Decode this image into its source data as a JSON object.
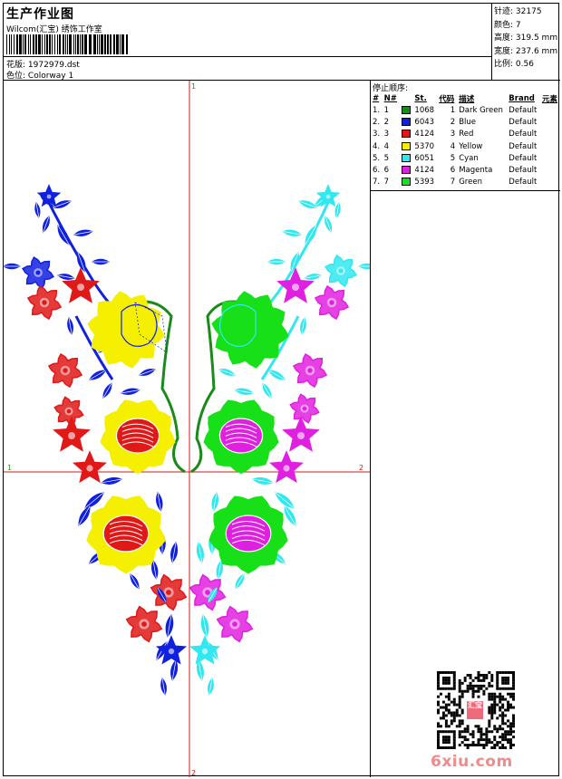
{
  "header": {
    "title": "生产作业图",
    "company": "Wilcom(汇宝) 绣饰工作室",
    "pattern_label": "花版:",
    "pattern_value": "1972979.dst",
    "colorway_label": "色位:",
    "colorway_value": "Colorway 1"
  },
  "stats": [
    {
      "label": "针迹:",
      "value": "32175"
    },
    {
      "label": "颜色:",
      "value": "7"
    },
    {
      "label": "高度:",
      "value": "319.5 mm"
    },
    {
      "label": "宽度:",
      "value": "237.6 mm"
    },
    {
      "label": "比例:",
      "value": "0.56"
    }
  ],
  "crosshair": {
    "top": "1",
    "bottom": "2",
    "left": "1",
    "right": "2"
  },
  "stop_sequence": {
    "title": "停止顺序:",
    "headers": {
      "idx": "#",
      "num": "N#",
      "st": "St.",
      "code": "代码",
      "desc": "描述",
      "brand": "Brand",
      "elem": "元素"
    },
    "rows": [
      {
        "idx": "1.",
        "num": "1",
        "color": "#1a8a1a",
        "st": "1068",
        "code": "1",
        "desc": "Dark Green",
        "brand": "Default"
      },
      {
        "idx": "2.",
        "num": "2",
        "color": "#1020e0",
        "st": "6043",
        "code": "2",
        "desc": "Blue",
        "brand": "Default"
      },
      {
        "idx": "3.",
        "num": "3",
        "color": "#e01818",
        "st": "4124",
        "code": "3",
        "desc": "Red",
        "brand": "Default"
      },
      {
        "idx": "4.",
        "num": "4",
        "color": "#f4f000",
        "st": "5370",
        "code": "4",
        "desc": "Yellow",
        "brand": "Default"
      },
      {
        "idx": "5.",
        "num": "5",
        "color": "#30e8f0",
        "st": "6051",
        "code": "5",
        "desc": "Cyan",
        "brand": "Default"
      },
      {
        "idx": "6.",
        "num": "6",
        "color": "#e020e0",
        "st": "4124",
        "code": "6",
        "desc": "Magenta",
        "brand": "Default"
      },
      {
        "idx": "7.",
        "num": "7",
        "color": "#18e018",
        "st": "5393",
        "code": "7",
        "desc": "Green",
        "brand": "Default"
      }
    ]
  },
  "watermark": "6xiu.com",
  "qr_stamp": "汇宝"
}
